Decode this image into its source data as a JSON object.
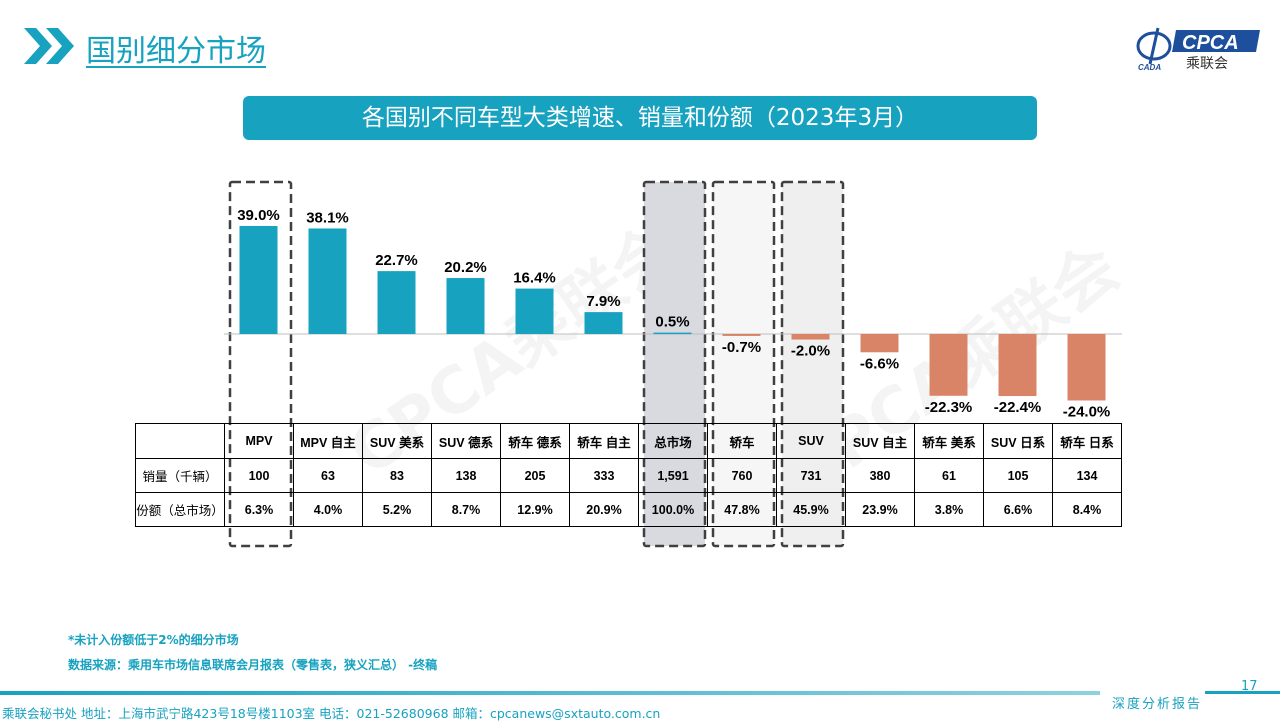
{
  "header": {
    "title": "国别细分市场",
    "arrow_icon": "double-chevron-right-icon",
    "logo_text": "CPCA",
    "logo_sub": "乘联会",
    "logo_small": "CADA"
  },
  "banner": {
    "title": "各国别不同车型大类增速、销量和份额（2023年3月）"
  },
  "colors": {
    "accent": "#17a2c0",
    "positive": "#17a2c0",
    "negative": "#d98466",
    "highlight_fill": "#d9d9e0",
    "highlight_fill_light": "#efefef"
  },
  "watermark": "CPCA乘联会",
  "chart_data": {
    "type": "bar",
    "categories": [
      "MPV",
      "MPV 自主",
      "SUV 美系",
      "SUV 德系",
      "轿车 德系",
      "轿车 自主",
      "总市场",
      "轿车",
      "SUV",
      "SUV 自主",
      "轿车 美系",
      "SUV 日系",
      "轿车 日系"
    ],
    "values": [
      39.0,
      38.1,
      22.7,
      20.2,
      16.4,
      7.9,
      0.5,
      -0.7,
      -2.0,
      -6.6,
      -22.3,
      -22.4,
      -24.0
    ],
    "value_labels": [
      "39.0%",
      "38.1%",
      "22.7%",
      "20.2%",
      "16.4%",
      "7.9%",
      "0.5%",
      "-0.7%",
      "-2.0%",
      "-6.6%",
      "-22.3%",
      "-22.4%",
      "-24.0%"
    ],
    "unit": "%",
    "highlighted": [
      "MPV",
      "总市场",
      "轿车",
      "SUV"
    ],
    "grid": false
  },
  "table": {
    "rows": [
      {
        "label": "销量（千辆）",
        "values": [
          "100",
          "63",
          "83",
          "138",
          "205",
          "333",
          "1,591",
          "760",
          "731",
          "380",
          "61",
          "105",
          "134"
        ]
      },
      {
        "label": "份额（总市场）",
        "values": [
          "6.3%",
          "4.0%",
          "5.2%",
          "8.7%",
          "12.9%",
          "20.9%",
          "100.0%",
          "47.8%",
          "45.9%",
          "23.9%",
          "3.8%",
          "6.6%",
          "8.4%"
        ]
      }
    ]
  },
  "notes": {
    "note1": "*未计入份额低于2%的细分市场",
    "source": "数据来源：乘用车市场信息联席会月报表（零售表，狭义汇总） -终稿"
  },
  "footer": {
    "address": "乘联会秘书处  地址：上海市武宁路423号18号楼1103室  电话：021-52680968  邮箱：cpcanews@sxtauto.com.cn",
    "report": "深度分析报告",
    "page": "17"
  }
}
